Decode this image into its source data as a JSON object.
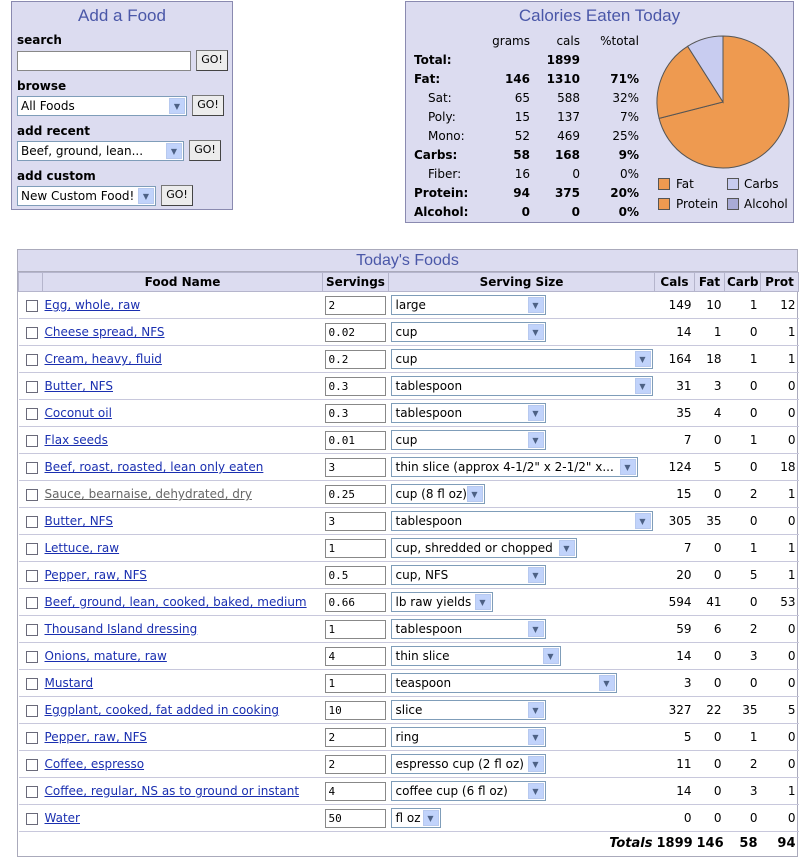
{
  "add_food": {
    "title": "Add a Food",
    "search_label": "search",
    "search_value": "",
    "browse_label": "browse",
    "browse_value": "All Foods",
    "recent_label": "add recent",
    "recent_value": "Beef, ground, lean...",
    "custom_label": "add custom",
    "custom_value": "New Custom Food!",
    "go_label": "GO!"
  },
  "calories": {
    "title": "Calories Eaten Today",
    "headers": [
      "grams",
      "cals",
      "%total"
    ],
    "rows": [
      {
        "name": "Total:",
        "grams": "",
        "cals": "1899",
        "pct": "",
        "bold": true
      },
      {
        "name": "Fat:",
        "grams": "146",
        "cals": "1310",
        "pct": "71%",
        "bold": true
      },
      {
        "name": "Sat:",
        "grams": "65",
        "cals": "588",
        "pct": "32%",
        "bold": false
      },
      {
        "name": "Poly:",
        "grams": "15",
        "cals": "137",
        "pct": "7%",
        "bold": false
      },
      {
        "name": "Mono:",
        "grams": "52",
        "cals": "469",
        "pct": "25%",
        "bold": false
      },
      {
        "name": "Carbs:",
        "grams": "58",
        "cals": "168",
        "pct": "9%",
        "bold": true
      },
      {
        "name": "Fiber:",
        "grams": "16",
        "cals": "0",
        "pct": "0%",
        "bold": false
      },
      {
        "name": "Protein:",
        "grams": "94",
        "cals": "375",
        "pct": "20%",
        "bold": true
      },
      {
        "name": "Alcohol:",
        "grams": "0",
        "cals": "0",
        "pct": "0%",
        "bold": true
      }
    ],
    "legend": {
      "fat": "Fat",
      "carbs": "Carbs",
      "protein": "Protein",
      "alcohol": "Alcohol"
    },
    "colors": {
      "fat": "#ee9a50",
      "carbs": "#c8ccf0",
      "protein": "#ee9a50",
      "alcohol": "#a9abd6"
    }
  },
  "chart_data": {
    "type": "pie",
    "categories": [
      "Fat",
      "Carbs",
      "Protein",
      "Alcohol"
    ],
    "values": [
      71,
      9,
      20,
      0
    ]
  },
  "foods": {
    "title": "Today's Foods",
    "headers": {
      "name": "Food Name",
      "servings": "Servings",
      "size": "Serving Size",
      "cals": "Cals",
      "fat": "Fat",
      "carb": "Carb",
      "prot": "Prot"
    },
    "rows": [
      {
        "name": "Egg, whole, raw",
        "servings": "2",
        "size": "large",
        "cals": "149",
        "fat": "10",
        "carb": "1",
        "prot": "12"
      },
      {
        "name": "Cheese spread, NFS",
        "servings": "0.02",
        "size": "cup",
        "cals": "14",
        "fat": "1",
        "carb": "0",
        "prot": "1"
      },
      {
        "name": "Cream, heavy, fluid",
        "servings": "0.2",
        "size": "cup",
        "cals": "164",
        "fat": "18",
        "carb": "1",
        "prot": "1"
      },
      {
        "name": "Butter, NFS",
        "servings": "0.3",
        "size": "tablespoon",
        "cals": "31",
        "fat": "3",
        "carb": "0",
        "prot": "0"
      },
      {
        "name": "Coconut oil",
        "servings": "0.3",
        "size": "tablespoon",
        "cals": "35",
        "fat": "4",
        "carb": "0",
        "prot": "0"
      },
      {
        "name": "Flax seeds",
        "servings": "0.01",
        "size": "cup",
        "cals": "7",
        "fat": "0",
        "carb": "1",
        "prot": "0"
      },
      {
        "name": "Beef, roast, roasted, lean only eaten",
        "servings": "3",
        "size": "thin slice (approx 4-1/2\" x 2-1/2\" x...",
        "cals": "124",
        "fat": "5",
        "carb": "0",
        "prot": "18"
      },
      {
        "name": "Sauce, bearnaise, dehydrated, dry",
        "servings": "0.25",
        "size": "cup (8 fl oz)",
        "cals": "15",
        "fat": "0",
        "carb": "2",
        "prot": "1"
      },
      {
        "name": "Butter, NFS",
        "servings": "3",
        "size": "tablespoon",
        "cals": "305",
        "fat": "35",
        "carb": "0",
        "prot": "0"
      },
      {
        "name": "Lettuce, raw",
        "servings": "1",
        "size": "cup, shredded or chopped",
        "cals": "7",
        "fat": "0",
        "carb": "1",
        "prot": "1"
      },
      {
        "name": "Pepper, raw, NFS",
        "servings": "0.5",
        "size": "cup, NFS",
        "cals": "20",
        "fat": "0",
        "carb": "5",
        "prot": "1"
      },
      {
        "name": "Beef, ground, lean, cooked, baked, medium",
        "servings": "0.66",
        "size": "lb raw yields",
        "cals": "594",
        "fat": "41",
        "carb": "0",
        "prot": "53"
      },
      {
        "name": "Thousand Island dressing",
        "servings": "1",
        "size": "tablespoon",
        "cals": "59",
        "fat": "6",
        "carb": "2",
        "prot": "0"
      },
      {
        "name": "Onions, mature, raw",
        "servings": "4",
        "size": "thin slice",
        "cals": "14",
        "fat": "0",
        "carb": "3",
        "prot": "0"
      },
      {
        "name": "Mustard",
        "servings": "1",
        "size": "teaspoon",
        "cals": "3",
        "fat": "0",
        "carb": "0",
        "prot": "0"
      },
      {
        "name": "Eggplant, cooked, fat added in cooking",
        "servings": "10",
        "size": "slice",
        "cals": "327",
        "fat": "22",
        "carb": "35",
        "prot": "5"
      },
      {
        "name": "Pepper, raw, NFS",
        "servings": "2",
        "size": "ring",
        "cals": "5",
        "fat": "0",
        "carb": "1",
        "prot": "0"
      },
      {
        "name": "Coffee, espresso",
        "servings": "2",
        "size": "espresso cup (2 fl oz)",
        "cals": "11",
        "fat": "0",
        "carb": "2",
        "prot": "0"
      },
      {
        "name": "Coffee, regular, NS as to ground or instant",
        "servings": "4",
        "size": "coffee cup (6 fl oz)",
        "cals": "14",
        "fat": "0",
        "carb": "3",
        "prot": "1"
      },
      {
        "name": "Water",
        "servings": "50",
        "size": "fl oz",
        "cals": "0",
        "fat": "0",
        "carb": "0",
        "prot": "0"
      }
    ],
    "totals": {
      "label": "Totals",
      "cals": "1899",
      "fat": "146",
      "carb": "58",
      "prot": "94"
    }
  }
}
